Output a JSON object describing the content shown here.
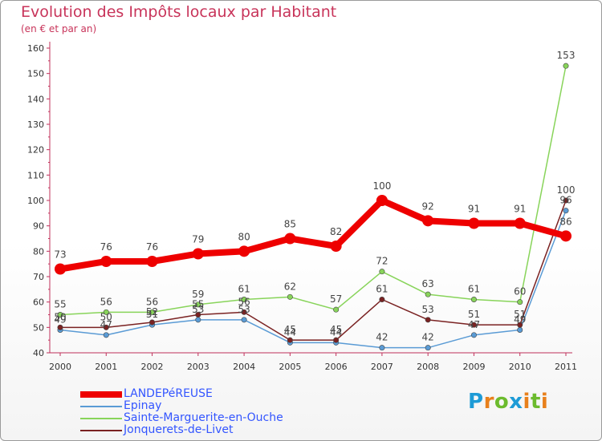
{
  "title": "Evolution des Impôts locaux par Habitant",
  "subtitle": "(en € et par an)",
  "logo": {
    "text": "Proxiti",
    "letters": [
      {
        "ch": "P",
        "color": "#1e9bd6"
      },
      {
        "ch": "r",
        "color": "#e8801c"
      },
      {
        "ch": "o",
        "color": "#6cbb2e"
      },
      {
        "ch": "x",
        "color": "#1e9bd6"
      },
      {
        "ch": "i",
        "color": "#e8801c"
      },
      {
        "ch": "t",
        "color": "#6cbb2e"
      },
      {
        "ch": "i",
        "color": "#e8801c"
      }
    ]
  },
  "chart_data": {
    "type": "line",
    "title": "Evolution des Impôts locaux par Habitant",
    "subtitle": "(en € et par an)",
    "xlabel": "",
    "ylabel": "",
    "x": [
      "2000",
      "2001",
      "2002",
      "2003",
      "2004",
      "2005",
      "2006",
      "2007",
      "2008",
      "2009",
      "2010",
      "2011"
    ],
    "ylim": [
      40,
      160
    ],
    "yticks": [
      "40",
      "50",
      "60",
      "70",
      "80",
      "90",
      "100",
      "110",
      "120",
      "130",
      "140",
      "150",
      "160"
    ],
    "grid": false,
    "legend_position": "bottom-left",
    "series": [
      {
        "name": "LANDEPéREUSE",
        "color": "#ee0000",
        "label_color": "#3355ff",
        "thick": true,
        "values": [
          73,
          76,
          76,
          79,
          80,
          85,
          82,
          100,
          92,
          91,
          91,
          86
        ],
        "labels": [
          "73",
          "76",
          "76",
          "79",
          "80",
          "85",
          "82",
          "100",
          "92",
          "91",
          "91",
          "86"
        ]
      },
      {
        "name": "Epinay",
        "color": "#5a9bd5",
        "label_color": "#3355ff",
        "thick": false,
        "values": [
          49,
          47,
          51,
          53,
          53,
          44,
          44,
          42,
          42,
          47,
          49,
          96
        ],
        "labels": [
          "49",
          "47",
          "51",
          "53",
          "53",
          "44",
          "44",
          "42",
          "42",
          "47",
          "49",
          "96"
        ]
      },
      {
        "name": "Sainte-Marguerite-en-Ouche",
        "color": "#88d45a",
        "label_color": "#3355ff",
        "thick": false,
        "values": [
          55,
          56,
          56,
          59,
          61,
          62,
          57,
          72,
          63,
          61,
          60,
          153
        ],
        "labels": [
          "55",
          "56",
          "56",
          "59",
          "61",
          "62",
          "57",
          "72",
          "63",
          "61",
          "60",
          "153"
        ]
      },
      {
        "name": "Jonquerets-de-Livet",
        "color": "#7a2222",
        "label_color": "#3355ff",
        "thick": false,
        "values": [
          50,
          50,
          52,
          55,
          56,
          45,
          45,
          61,
          53,
          51,
          51,
          100
        ],
        "labels": [
          "50",
          "50",
          "52",
          "55",
          "56",
          "45",
          "45",
          "61",
          "53",
          "51",
          "51",
          "100"
        ]
      }
    ]
  }
}
